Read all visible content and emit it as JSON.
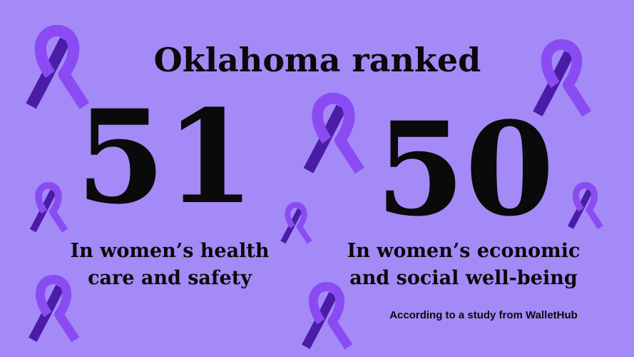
{
  "header": {
    "title": "Oklahoma ranked"
  },
  "rankings": [
    {
      "rank": 51,
      "description": [
        "In women’s health",
        "care and safety"
      ]
    },
    {
      "rank": 50,
      "description": [
        "In women’s economic",
        "and social well-being"
      ]
    }
  ],
  "source": "According to a study from WalletHub"
}
